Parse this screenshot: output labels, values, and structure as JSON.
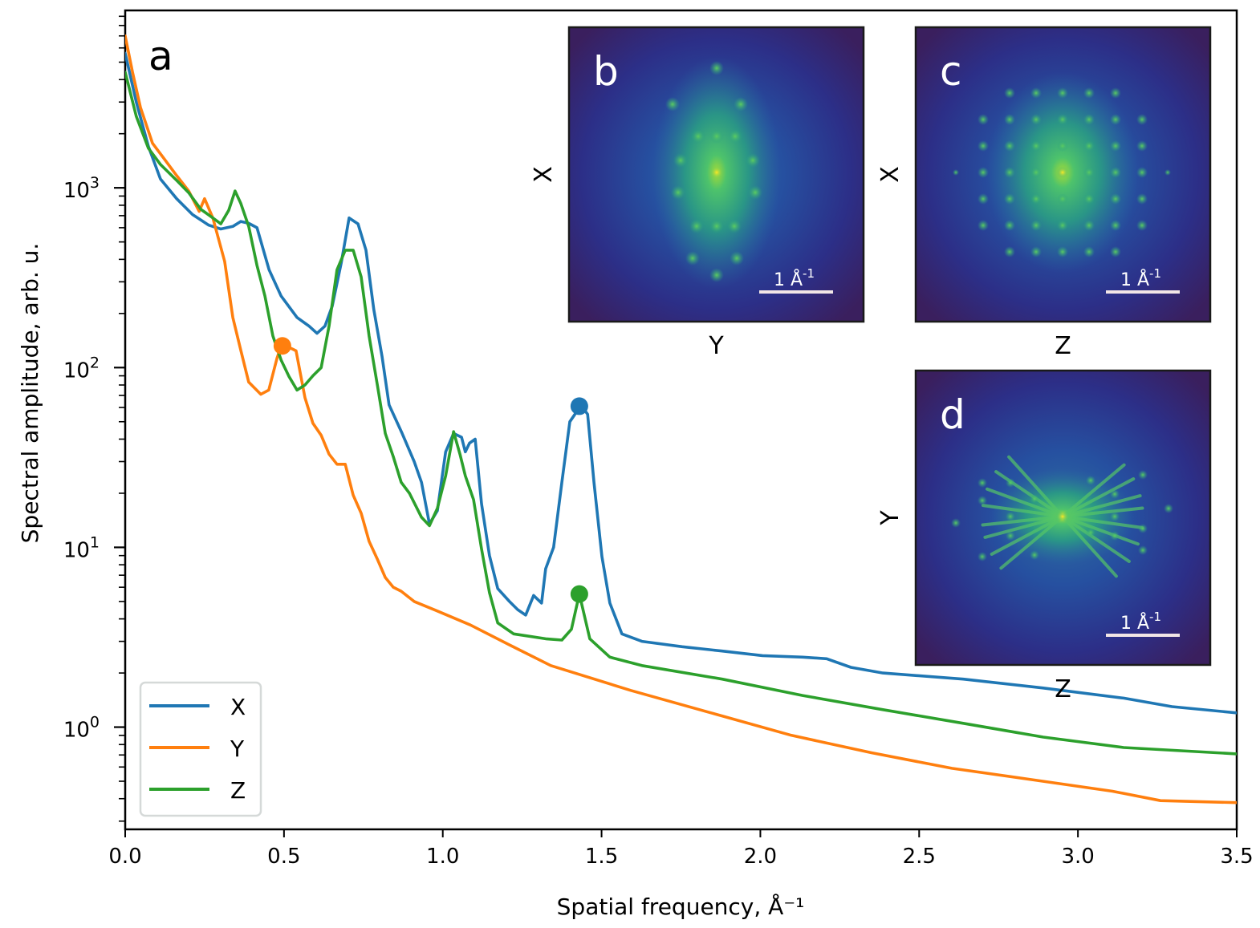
{
  "chart_data": {
    "type": "line",
    "panel_label": "a",
    "xlabel": "Spatial frequency, Å⁻¹",
    "ylabel": "Spectral amplitude, arb. u.",
    "xscale": "linear",
    "yscale": "log",
    "xlim": [
      0.0,
      3.5
    ],
    "ylim": [
      0.27,
      9700
    ],
    "xticks": [
      0.0,
      0.5,
      1.0,
      1.5,
      2.0,
      2.5,
      3.0,
      3.5
    ],
    "xtick_labels": [
      "0.0",
      "0.5",
      "1.0",
      "1.5",
      "2.0",
      "2.5",
      "3.0",
      "3.5"
    ],
    "yticks": [
      1,
      10,
      100,
      1000
    ],
    "ytick_labels": [
      {
        "base": "10",
        "exp": "0"
      },
      {
        "base": "10",
        "exp": "1"
      },
      {
        "base": "10",
        "exp": "2"
      },
      {
        "base": "10",
        "exp": "3"
      }
    ],
    "grid": false,
    "legend": {
      "placement": "lower-left",
      "entries": [
        "X",
        "Y",
        "Z"
      ]
    },
    "series": [
      {
        "name": "X",
        "color": "#1f77b4",
        "x": [
          0.0,
          0.035,
          0.073,
          0.111,
          0.162,
          0.212,
          0.263,
          0.301,
          0.339,
          0.364,
          0.389,
          0.415,
          0.453,
          0.491,
          0.541,
          0.579,
          0.604,
          0.629,
          0.652,
          0.68,
          0.705,
          0.733,
          0.758,
          0.783,
          0.809,
          0.831,
          0.872,
          0.91,
          0.933,
          0.958,
          0.983,
          1.009,
          1.034,
          1.059,
          1.071,
          1.084,
          1.102,
          1.122,
          1.147,
          1.173,
          1.21,
          1.236,
          1.261,
          1.286,
          1.311,
          1.324,
          1.349,
          1.375,
          1.4,
          1.425,
          1.438,
          1.456,
          1.476,
          1.501,
          1.526,
          1.564,
          1.627,
          1.754,
          1.88,
          2.007,
          2.133,
          2.209,
          2.285,
          2.386,
          2.639,
          2.891,
          3.144,
          3.296,
          3.5
        ],
        "values": [
          5600,
          3000,
          1700,
          1120,
          870,
          710,
          620,
          590,
          610,
          650,
          635,
          600,
          350,
          250,
          190,
          170,
          155,
          170,
          220,
          380,
          680,
          630,
          450,
          210,
          115,
          62,
          43,
          30,
          23,
          13.5,
          16,
          34,
          43,
          41,
          34,
          38,
          40,
          17.5,
          9.0,
          5.9,
          5.0,
          4.5,
          4.2,
          5.4,
          4.9,
          7.6,
          10,
          23,
          50,
          58,
          61,
          55,
          23,
          8.9,
          4.9,
          3.3,
          3.0,
          2.8,
          2.65,
          2.5,
          2.45,
          2.4,
          2.15,
          2.0,
          1.85,
          1.65,
          1.45,
          1.3,
          1.2
        ]
      },
      {
        "name": "Y",
        "color": "#ff7f0e",
        "x": [
          0.0,
          0.023,
          0.048,
          0.086,
          0.124,
          0.162,
          0.2,
          0.233,
          0.25,
          0.276,
          0.313,
          0.339,
          0.364,
          0.389,
          0.427,
          0.452,
          0.478,
          0.493,
          0.526,
          0.538,
          0.566,
          0.591,
          0.617,
          0.642,
          0.667,
          0.693,
          0.718,
          0.743,
          0.768,
          0.794,
          0.819,
          0.844,
          0.869,
          0.91,
          0.986,
          1.087,
          1.213,
          1.34,
          1.592,
          1.845,
          2.098,
          2.35,
          2.603,
          2.856,
          3.109,
          3.26,
          3.5
        ],
        "values": [
          7000,
          4400,
          2800,
          1770,
          1440,
          1170,
          960,
          740,
          870,
          680,
          390,
          190,
          125,
          83,
          71,
          75,
          113,
          135,
          127,
          124,
          68,
          49,
          42,
          33,
          29,
          29,
          19.5,
          15.5,
          10.8,
          8.6,
          6.8,
          6.0,
          5.7,
          5.0,
          4.4,
          3.7,
          2.85,
          2.2,
          1.6,
          1.2,
          0.9,
          0.72,
          0.59,
          0.51,
          0.44,
          0.39,
          0.38
        ]
      },
      {
        "name": "Z",
        "color": "#2ca02c",
        "x": [
          0.0,
          0.035,
          0.073,
          0.111,
          0.162,
          0.2,
          0.238,
          0.276,
          0.301,
          0.326,
          0.346,
          0.364,
          0.389,
          0.415,
          0.44,
          0.465,
          0.491,
          0.516,
          0.541,
          0.566,
          0.591,
          0.617,
          0.642,
          0.667,
          0.693,
          0.718,
          0.743,
          0.768,
          0.794,
          0.819,
          0.844,
          0.869,
          0.895,
          0.933,
          0.958,
          0.983,
          1.009,
          1.034,
          1.054,
          1.071,
          1.097,
          1.122,
          1.147,
          1.173,
          1.223,
          1.324,
          1.375,
          1.405,
          1.43,
          1.463,
          1.526,
          1.627,
          1.88,
          2.133,
          2.386,
          2.639,
          2.891,
          3.144,
          3.5
        ],
        "values": [
          4400,
          2500,
          1660,
          1350,
          1100,
          940,
          760,
          680,
          630,
          750,
          960,
          820,
          610,
          370,
          250,
          150,
          110,
          89,
          75,
          80,
          90,
          100,
          170,
          350,
          450,
          450,
          320,
          150,
          80,
          43,
          32,
          23,
          20,
          14.7,
          13.2,
          16.5,
          25,
          44,
          33,
          25,
          18.4,
          9.8,
          5.6,
          3.8,
          3.3,
          3.1,
          3.05,
          3.5,
          5.5,
          3.1,
          2.45,
          2.2,
          1.85,
          1.5,
          1.25,
          1.05,
          0.88,
          0.77,
          0.71
        ]
      }
    ],
    "markers": [
      {
        "series": "X",
        "x": 1.43,
        "y": 61,
        "color": "#1f77b4"
      },
      {
        "series": "Y",
        "x": 0.495,
        "y": 132,
        "color": "#ff7f0e"
      },
      {
        "series": "Z",
        "x": 1.43,
        "y": 5.5,
        "color": "#2ca02c"
      }
    ],
    "insets": [
      {
        "label": "b",
        "xlabel": "Y",
        "ylabel": "X",
        "scale_bar": "1 Å",
        "scale_bar_exp": "-1",
        "pattern": "ellipse-vertical"
      },
      {
        "label": "c",
        "xlabel": "Z",
        "ylabel": "X",
        "scale_bar": "1 Å",
        "scale_bar_exp": "-1",
        "pattern": "grid-spots"
      },
      {
        "label": "d",
        "xlabel": "Z",
        "ylabel": "Y",
        "scale_bar": "1 Å",
        "scale_bar_exp": "-1",
        "pattern": "streaks"
      }
    ],
    "colormap": {
      "low": "#3a1f5e",
      "mid": "#23388e",
      "high": "#3fbc73",
      "peak": "#f5e626"
    }
  }
}
